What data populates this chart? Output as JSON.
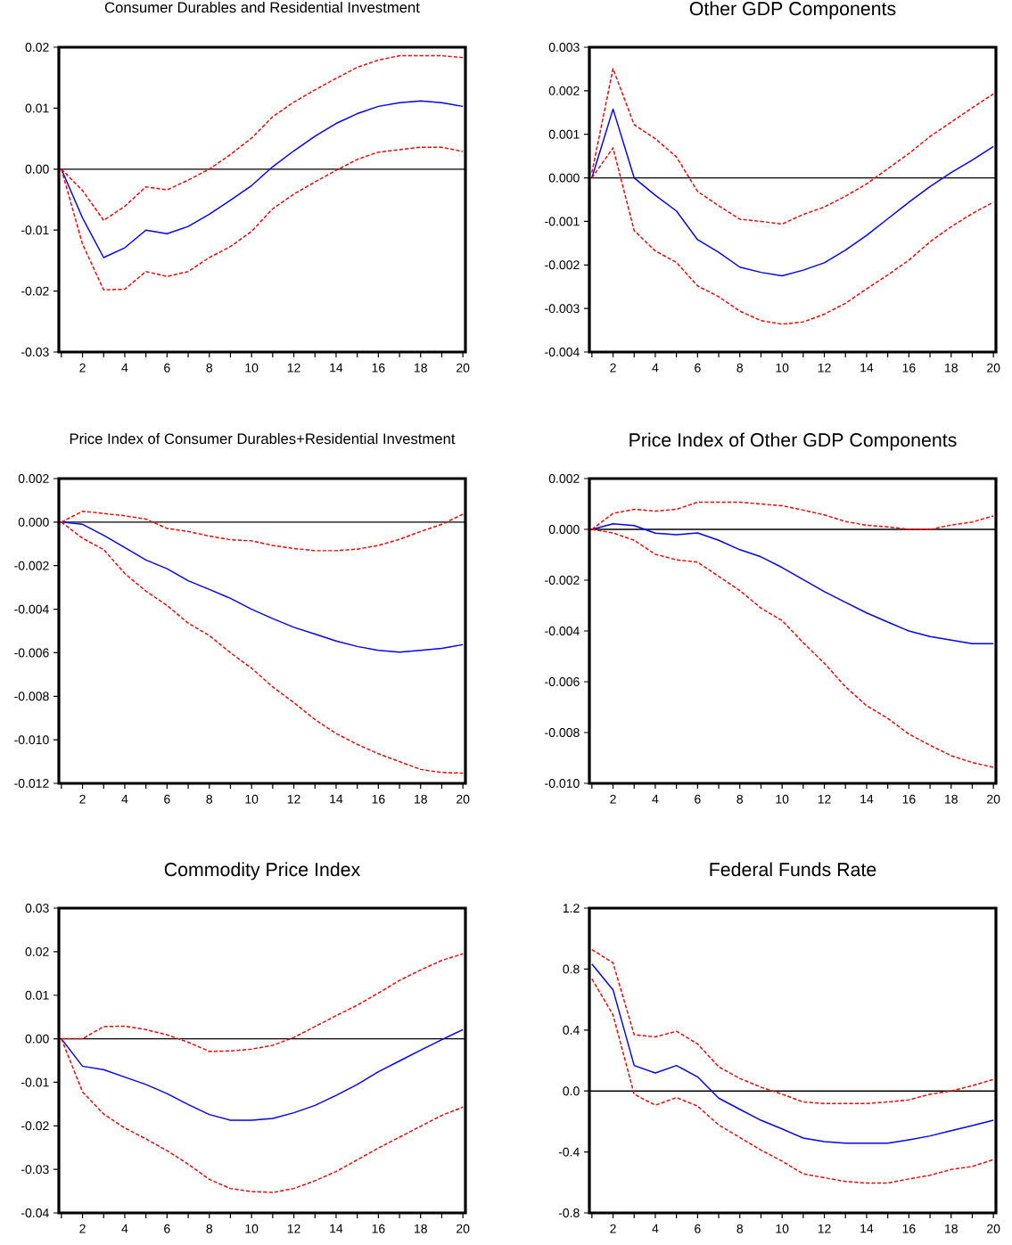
{
  "chart_data": [
    {
      "type": "line",
      "title": "Consumer Durables and Residential Investment",
      "x": [
        1,
        2,
        3,
        4,
        5,
        6,
        7,
        8,
        9,
        10,
        11,
        12,
        13,
        14,
        15,
        16,
        17,
        18,
        19,
        20
      ],
      "xlim": [
        1,
        20
      ],
      "xticks": [
        {
          "value": 1,
          "label": null
        },
        2,
        {
          "value": 3,
          "label": null
        },
        4,
        {
          "value": 5,
          "label": null
        },
        6,
        {
          "value": 7,
          "label": null
        },
        8,
        {
          "value": 9,
          "label": null
        },
        10,
        {
          "value": 11,
          "label": null
        },
        12,
        {
          "value": 13,
          "label": null
        },
        14,
        {
          "value": 15,
          "label": null
        },
        16,
        {
          "value": 17,
          "label": null
        },
        18,
        {
          "value": 19,
          "label": null
        },
        20
      ],
      "ylim": [
        -0.03,
        0.02
      ],
      "yticks": [
        {
          "value": -0.03,
          "label": "-0.03"
        },
        {
          "value": -0.02,
          "label": "-0.02"
        },
        {
          "value": -0.01,
          "label": "-0.01"
        },
        {
          "value": 0,
          "label": "0.00"
        },
        {
          "value": 0.01,
          "label": "0.01"
        },
        {
          "value": 0.02,
          "label": "0.02"
        }
      ],
      "ref_lines": [
        {
          "axis": "y",
          "value": 0,
          "color": "#000000"
        }
      ],
      "series": [
        {
          "color": "#0000ff",
          "line_style": "solid",
          "values": [
            0,
            -0.008,
            -0.0145,
            -0.0129,
            -0.01,
            -0.0106,
            -0.0094,
            -0.0074,
            -0.0051,
            -0.0027,
            0.0004,
            0.003,
            0.0054,
            0.0075,
            0.0091,
            0.0103,
            0.0109,
            0.0112,
            0.0109,
            0.0103
          ]
        },
        {
          "color": "#ff0000",
          "line_style": "dashed",
          "values": [
            0,
            -0.0035,
            -0.0084,
            -0.0061,
            -0.0029,
            -0.0034,
            -0.0018,
            0,
            0.0024,
            0.0051,
            0.0086,
            0.011,
            0.013,
            0.0149,
            0.0167,
            0.0179,
            0.0186,
            0.0186,
            0.0186,
            0.0183
          ]
        },
        {
          "color": "#ff0000",
          "line_style": "dashed",
          "values": [
            0,
            -0.0123,
            -0.0198,
            -0.0197,
            -0.0168,
            -0.0176,
            -0.0168,
            -0.0145,
            -0.0127,
            -0.0102,
            -0.0065,
            -0.0041,
            -0.0021,
            -0.0002,
            0.0016,
            0.0028,
            0.0032,
            0.0036,
            0.0036,
            0.0029
          ]
        }
      ]
    },
    {
      "type": "line",
      "title": "Other GDP Components",
      "x": [
        1,
        2,
        3,
        4,
        5,
        6,
        7,
        8,
        9,
        10,
        11,
        12,
        13,
        14,
        15,
        16,
        17,
        18,
        19,
        20
      ],
      "xlim": [
        1,
        20
      ],
      "xticks": [
        {
          "value": 1,
          "label": null
        },
        2,
        {
          "value": 3,
          "label": null
        },
        4,
        {
          "value": 5,
          "label": null
        },
        6,
        {
          "value": 7,
          "label": null
        },
        8,
        {
          "value": 9,
          "label": null
        },
        10,
        {
          "value": 11,
          "label": null
        },
        12,
        {
          "value": 13,
          "label": null
        },
        14,
        {
          "value": 15,
          "label": null
        },
        16,
        {
          "value": 17,
          "label": null
        },
        18,
        {
          "value": 19,
          "label": null
        },
        20
      ],
      "ylim": [
        -0.004,
        0.003
      ],
      "yticks": [
        {
          "value": -0.004,
          "label": "-0.004"
        },
        {
          "value": -0.003,
          "label": "-0.003"
        },
        {
          "value": -0.002,
          "label": "-0.002"
        },
        {
          "value": -0.001,
          "label": "-0.001"
        },
        {
          "value": 0,
          "label": "0.000"
        },
        {
          "value": 0.001,
          "label": "0.001"
        },
        {
          "value": 0.002,
          "label": "0.002"
        },
        {
          "value": 0.003,
          "label": "0.003"
        }
      ],
      "ref_lines": [
        {
          "axis": "y",
          "value": 0,
          "color": "#000000"
        }
      ],
      "series": [
        {
          "color": "#0000ff",
          "line_style": "solid",
          "values": [
            0,
            0.00158,
            0,
            -0.0004,
            -0.00076,
            -0.00142,
            -0.00171,
            -0.00205,
            -0.00217,
            -0.00225,
            -0.00212,
            -0.00195,
            -0.00166,
            -0.00132,
            -0.00094,
            -0.00056,
            -0.0002,
            0.00012,
            0.00041,
            0.00072
          ]
        },
        {
          "color": "#ff0000",
          "line_style": "dashed",
          "values": [
            0.00012,
            0.00251,
            0.00122,
            0.0009,
            0.00048,
            -0.00031,
            -0.00064,
            -0.00095,
            -0.001,
            -0.00106,
            -0.00084,
            -0.00067,
            -0.00042,
            -0.00014,
            0.00021,
            0.00056,
            0.00095,
            0.00128,
            0.00161,
            0.00193
          ]
        },
        {
          "color": "#ff0000",
          "line_style": "dashed",
          "values": [
            0,
            0.00069,
            -0.00121,
            -0.00168,
            -0.00194,
            -0.00248,
            -0.00273,
            -0.00306,
            -0.00328,
            -0.00336,
            -0.00331,
            -0.00313,
            -0.00288,
            -0.00255,
            -0.00223,
            -0.00189,
            -0.00147,
            -0.00112,
            -0.00082,
            -0.00056
          ]
        }
      ]
    },
    {
      "type": "line",
      "title": "Price Index of Consumer Durables+Residential Investment",
      "x": [
        1,
        2,
        3,
        4,
        5,
        6,
        7,
        8,
        9,
        10,
        11,
        12,
        13,
        14,
        15,
        16,
        17,
        18,
        19,
        20
      ],
      "xlim": [
        1,
        20
      ],
      "xticks": [
        {
          "value": 1,
          "label": null
        },
        2,
        {
          "value": 3,
          "label": null
        },
        4,
        {
          "value": 5,
          "label": null
        },
        6,
        {
          "value": 7,
          "label": null
        },
        8,
        {
          "value": 9,
          "label": null
        },
        10,
        {
          "value": 11,
          "label": null
        },
        12,
        {
          "value": 13,
          "label": null
        },
        14,
        {
          "value": 15,
          "label": null
        },
        16,
        {
          "value": 17,
          "label": null
        },
        18,
        {
          "value": 19,
          "label": null
        },
        20
      ],
      "ylim": [
        -0.012,
        0.002
      ],
      "yticks": [
        {
          "value": -0.012,
          "label": "-0.012"
        },
        {
          "value": -0.01,
          "label": "-0.010"
        },
        {
          "value": -0.008,
          "label": "-0.008"
        },
        {
          "value": -0.006,
          "label": "-0.006"
        },
        {
          "value": -0.004,
          "label": "-0.004"
        },
        {
          "value": -0.002,
          "label": "-0.002"
        },
        {
          "value": 0,
          "label": "0.000"
        },
        {
          "value": 0.002,
          "label": "0.002"
        }
      ],
      "ref_lines": [
        {
          "axis": "y",
          "value": 0,
          "color": "#000000"
        }
      ],
      "series": [
        {
          "color": "#0000ff",
          "line_style": "solid",
          "values": [
            0,
            -0.0001,
            -0.0006,
            -0.00117,
            -0.00174,
            -0.00214,
            -0.00269,
            -0.00309,
            -0.0035,
            -0.004,
            -0.00443,
            -0.00483,
            -0.00514,
            -0.00546,
            -0.00571,
            -0.00589,
            -0.00597,
            -0.00589,
            -0.0058,
            -0.00563
          ]
        },
        {
          "color": "#ff0000",
          "line_style": "dashed",
          "values": [
            0,
            0.0005,
            0.0004,
            0.00029,
            0.00014,
            -0.00029,
            -0.00043,
            -0.00064,
            -0.00081,
            -0.00086,
            -0.00107,
            -0.00121,
            -0.00131,
            -0.00131,
            -0.00124,
            -0.00107,
            -0.00079,
            -0.00043,
            -0.0001,
            0.00036
          ]
        },
        {
          "color": "#ff0000",
          "line_style": "dashed",
          "values": [
            0,
            -0.00074,
            -0.00126,
            -0.00236,
            -0.00317,
            -0.00383,
            -0.00464,
            -0.00521,
            -0.006,
            -0.00671,
            -0.00757,
            -0.00829,
            -0.00907,
            -0.00971,
            -0.01021,
            -0.01064,
            -0.011,
            -0.01136,
            -0.0115,
            -0.01153
          ]
        }
      ]
    },
    {
      "type": "line",
      "title": "Price Index of Other GDP Components",
      "x": [
        1,
        2,
        3,
        4,
        5,
        6,
        7,
        8,
        9,
        10,
        11,
        12,
        13,
        14,
        15,
        16,
        17,
        18,
        19,
        20
      ],
      "xlim": [
        1,
        20
      ],
      "xticks": [
        {
          "value": 1,
          "label": null
        },
        2,
        {
          "value": 3,
          "label": null
        },
        4,
        {
          "value": 5,
          "label": null
        },
        6,
        {
          "value": 7,
          "label": null
        },
        8,
        {
          "value": 9,
          "label": null
        },
        10,
        {
          "value": 11,
          "label": null
        },
        12,
        {
          "value": 13,
          "label": null
        },
        14,
        {
          "value": 15,
          "label": null
        },
        16,
        {
          "value": 17,
          "label": null
        },
        18,
        {
          "value": 19,
          "label": null
        },
        20
      ],
      "ylim": [
        -0.01,
        0.002
      ],
      "yticks": [
        {
          "value": -0.01,
          "label": "-0.010"
        },
        {
          "value": -0.008,
          "label": "-0.008"
        },
        {
          "value": -0.006,
          "label": "-0.006"
        },
        {
          "value": -0.004,
          "label": "-0.004"
        },
        {
          "value": -0.002,
          "label": "-0.002"
        },
        {
          "value": 0,
          "label": "0.000"
        },
        {
          "value": 0.002,
          "label": "0.002"
        }
      ],
      "ref_lines": [
        {
          "axis": "y",
          "value": 0,
          "color": "#000000"
        }
      ],
      "series": [
        {
          "color": "#0000ff",
          "line_style": "solid",
          "values": [
            0,
            0.00022,
            0.00015,
            -0.00015,
            -0.00021,
            -0.00014,
            -0.00043,
            -0.0008,
            -0.00108,
            -0.0015,
            -0.00198,
            -0.00245,
            -0.00287,
            -0.00329,
            -0.00365,
            -0.004,
            -0.00422,
            -0.00436,
            -0.0045,
            -0.0045
          ]
        },
        {
          "color": "#ff0000",
          "line_style": "dashed",
          "values": [
            0,
            0.00063,
            0.00079,
            0.00072,
            0.00079,
            0.00107,
            0.00107,
            0.00107,
            0.001,
            0.00093,
            0.00076,
            0.00057,
            0.00031,
            0.00016,
            0.0001,
            0,
            0,
            0.00017,
            0.00029,
            0.00053
          ]
        },
        {
          "color": "#ff0000",
          "line_style": "dashed",
          "values": [
            0,
            -0.00014,
            -0.00043,
            -0.00098,
            -0.0012,
            -0.00129,
            -0.00185,
            -0.00241,
            -0.0031,
            -0.00359,
            -0.00446,
            -0.00527,
            -0.0062,
            -0.00694,
            -0.00744,
            -0.00806,
            -0.0085,
            -0.00891,
            -0.00918,
            -0.00937
          ]
        }
      ]
    },
    {
      "type": "line",
      "title": "Commodity Price Index",
      "x": [
        1,
        2,
        3,
        4,
        5,
        6,
        7,
        8,
        9,
        10,
        11,
        12,
        13,
        14,
        15,
        16,
        17,
        18,
        19,
        20
      ],
      "xlim": [
        1,
        20
      ],
      "xticks": [
        {
          "value": 1,
          "label": null
        },
        2,
        {
          "value": 3,
          "label": null
        },
        4,
        {
          "value": 5,
          "label": null
        },
        6,
        {
          "value": 7,
          "label": null
        },
        8,
        {
          "value": 9,
          "label": null
        },
        10,
        {
          "value": 11,
          "label": null
        },
        12,
        {
          "value": 13,
          "label": null
        },
        14,
        {
          "value": 15,
          "label": null
        },
        16,
        {
          "value": 17,
          "label": null
        },
        18,
        {
          "value": 19,
          "label": null
        },
        20
      ],
      "ylim": [
        -0.04,
        0.03
      ],
      "yticks": [
        {
          "value": -0.04,
          "label": "-0.04"
        },
        {
          "value": -0.03,
          "label": "-0.03"
        },
        {
          "value": -0.02,
          "label": "-0.02"
        },
        {
          "value": -0.01,
          "label": "-0.01"
        },
        {
          "value": 0,
          "label": "0.00"
        },
        {
          "value": 0.01,
          "label": "0.01"
        },
        {
          "value": 0.02,
          "label": "0.02"
        },
        {
          "value": 0.03,
          "label": "0.03"
        }
      ],
      "ref_lines": [
        {
          "axis": "y",
          "value": 0,
          "color": "#000000"
        }
      ],
      "series": [
        {
          "color": "#0000ff",
          "line_style": "solid",
          "values": [
            0,
            -0.0063,
            -0.0071,
            -0.0088,
            -0.0105,
            -0.0126,
            -0.0151,
            -0.0174,
            -0.0187,
            -0.0187,
            -0.0183,
            -0.017,
            -0.0153,
            -0.013,
            -0.0105,
            -0.0076,
            -0.0051,
            -0.0026,
            -0.0002,
            0.0021
          ]
        },
        {
          "color": "#ff0000",
          "line_style": "dashed",
          "values": [
            0,
            0,
            0.0028,
            0.0029,
            0.0021,
            0.0009,
            -0.0008,
            -0.0029,
            -0.0028,
            -0.0024,
            -0.0015,
            0.0003,
            0.0028,
            0.0053,
            0.0077,
            0.0105,
            0.0134,
            0.0158,
            0.018,
            0.0195
          ]
        },
        {
          "color": "#ff0000",
          "line_style": "dashed",
          "values": [
            0,
            -0.0122,
            -0.0173,
            -0.0205,
            -0.023,
            -0.0257,
            -0.0288,
            -0.0323,
            -0.0344,
            -0.0351,
            -0.0353,
            -0.0344,
            -0.0326,
            -0.0305,
            -0.0278,
            -0.0251,
            -0.0226,
            -0.0201,
            -0.0176,
            -0.0157
          ]
        }
      ]
    },
    {
      "type": "line",
      "title": "Federal Funds Rate",
      "x": [
        1,
        2,
        3,
        4,
        5,
        6,
        7,
        8,
        9,
        10,
        11,
        12,
        13,
        14,
        15,
        16,
        17,
        18,
        19,
        20
      ],
      "xlim": [
        1,
        20
      ],
      "xticks": [
        {
          "value": 1,
          "label": null
        },
        2,
        {
          "value": 3,
          "label": null
        },
        4,
        {
          "value": 5,
          "label": null
        },
        6,
        {
          "value": 7,
          "label": null
        },
        8,
        {
          "value": 9,
          "label": null
        },
        10,
        {
          "value": 11,
          "label": null
        },
        12,
        {
          "value": 13,
          "label": null
        },
        14,
        {
          "value": 15,
          "label": null
        },
        16,
        {
          "value": 17,
          "label": null
        },
        18,
        {
          "value": 19,
          "label": null
        },
        20
      ],
      "ylim": [
        -0.8,
        1.2
      ],
      "yticks": [
        -0.8,
        -0.4,
        {
          "value": 0,
          "label": "0.0"
        },
        0.4,
        0.8,
        1.2
      ],
      "ref_lines": [
        {
          "axis": "y",
          "value": 0,
          "color": "#000000"
        }
      ],
      "series": [
        {
          "color": "#0000ff",
          "line_style": "solid",
          "values": [
            0.833,
            0.664,
            0.167,
            0.118,
            0.167,
            0.093,
            -0.047,
            -0.12,
            -0.192,
            -0.249,
            -0.309,
            -0.332,
            -0.342,
            -0.342,
            -0.342,
            -0.32,
            -0.295,
            -0.26,
            -0.227,
            -0.192
          ]
        },
        {
          "color": "#ff0000",
          "line_style": "dashed",
          "values": [
            0.928,
            0.841,
            0.369,
            0.355,
            0.392,
            0.309,
            0.159,
            0.082,
            0.025,
            -0.021,
            -0.072,
            -0.082,
            -0.082,
            -0.082,
            -0.072,
            -0.058,
            -0.021,
            0,
            0.035,
            0.076
          ]
        },
        {
          "color": "#ff0000",
          "line_style": "dashed",
          "values": [
            0.736,
            0.499,
            -0.021,
            -0.093,
            -0.043,
            -0.099,
            -0.223,
            -0.305,
            -0.388,
            -0.46,
            -0.544,
            -0.569,
            -0.594,
            -0.604,
            -0.604,
            -0.577,
            -0.553,
            -0.515,
            -0.495,
            -0.45
          ]
        }
      ]
    }
  ]
}
